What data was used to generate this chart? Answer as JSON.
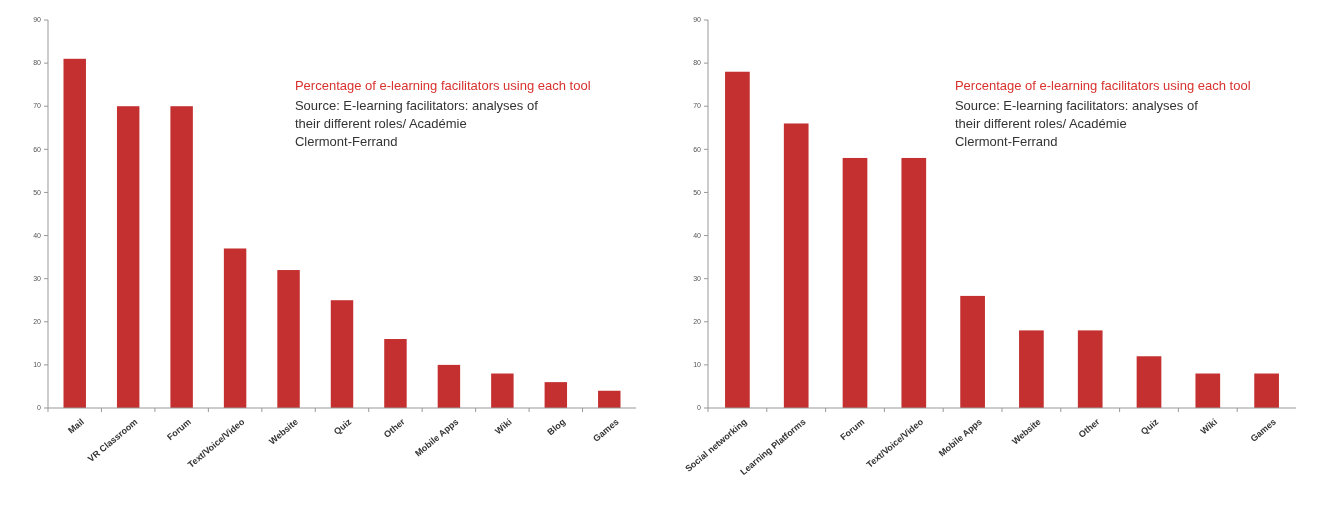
{
  "chart_data": [
    {
      "type": "bar",
      "title": "Percentage of e-learning facilitators using each tool",
      "annotations": [
        "Source:  E-learning facilitators: analyses of their different roles/ Académie Clermont-Ferrand"
      ],
      "categories": [
        "Mail",
        "VR Classroom",
        "Forum",
        "Text/Voice/Video",
        "Website",
        "Quiz",
        "Other",
        "Mobile Apps",
        "Wiki",
        "Blog",
        "Games"
      ],
      "values": [
        81,
        70,
        70,
        37,
        32,
        25,
        16,
        10,
        8,
        6,
        4
      ],
      "color": "#c3302f",
      "ylim": [
        0,
        90
      ],
      "yticks": [
        0,
        10,
        20,
        30,
        40,
        50,
        60,
        70,
        80,
        90
      ],
      "grid": false
    },
    {
      "type": "bar",
      "title": "Percentage of e-learning facilitators using each tool",
      "annotations": [
        "Source:  E-learning facilitators: analyses of their different roles/ Académie Clermont-Ferrand"
      ],
      "categories": [
        "Social networking",
        "Learning Platforms",
        "Forum",
        "Text/Voice/Video",
        "Mobile Apps",
        "Website",
        "Other",
        "Quiz",
        "Wiki",
        "Games"
      ],
      "values": [
        78,
        66,
        58,
        58,
        26,
        18,
        18,
        12,
        8,
        8
      ],
      "color": "#c3302f",
      "ylim": [
        0,
        90
      ],
      "yticks": [
        0,
        10,
        20,
        30,
        40,
        50,
        60,
        70,
        80,
        90
      ],
      "grid": false
    }
  ]
}
